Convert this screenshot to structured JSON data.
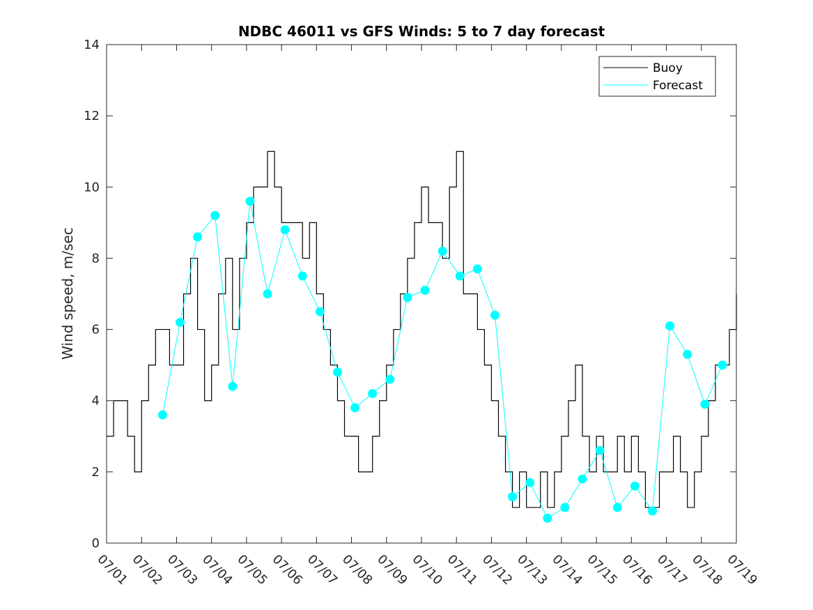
{
  "chart_data": {
    "type": "line",
    "title": "NDBC 46011 vs GFS Winds: 5 to 7 day forecast",
    "xlabel": "",
    "ylabel": "Wind speed, m/sec",
    "xlim": [
      1,
      19
    ],
    "ylim": [
      0,
      14
    ],
    "y_ticks": [
      0,
      2,
      4,
      6,
      8,
      10,
      12,
      14
    ],
    "x_ticks": [
      1,
      2,
      3,
      4,
      5,
      6,
      7,
      8,
      9,
      10,
      11,
      12,
      13,
      14,
      15,
      16,
      17,
      18,
      19
    ],
    "x_tick_labels": [
      "07/01",
      "07/02",
      "07/03",
      "07/04",
      "07/05",
      "07/06",
      "07/07",
      "07/08",
      "07/09",
      "07/10",
      "07/11",
      "07/12",
      "07/13",
      "07/14",
      "07/15",
      "07/16",
      "07/17",
      "07/18",
      "07/19"
    ],
    "grid": false,
    "legend": {
      "position": "top-right",
      "entries": [
        "Buoy",
        "Forecast"
      ]
    },
    "colors": {
      "buoy": "#000000",
      "forecast": "#00ffff"
    },
    "series": [
      {
        "name": "Buoy",
        "x": [
          1.0,
          1.2,
          1.4,
          1.6,
          1.8,
          2.0,
          2.2,
          2.4,
          2.6,
          2.8,
          3.0,
          3.2,
          3.4,
          3.6,
          3.8,
          4.0,
          4.2,
          4.4,
          4.6,
          4.8,
          5.0,
          5.2,
          5.4,
          5.6,
          5.8,
          6.0,
          6.2,
          6.4,
          6.6,
          6.8,
          7.0,
          7.2,
          7.4,
          7.6,
          7.8,
          8.0,
          8.2,
          8.4,
          8.6,
          8.8,
          9.0,
          9.2,
          9.4,
          9.6,
          9.8,
          10.0,
          10.2,
          10.4,
          10.6,
          10.8,
          11.0,
          11.2,
          11.4,
          11.6,
          11.8,
          12.0,
          12.2,
          12.4,
          12.6,
          12.8,
          13.0,
          13.2,
          13.4,
          13.6,
          13.8,
          14.0,
          14.2,
          14.4,
          14.6,
          14.8,
          15.0,
          15.2,
          15.4,
          15.6,
          15.8,
          16.0,
          16.2,
          16.4,
          16.6,
          16.8,
          17.0,
          17.2,
          17.4,
          17.6,
          17.8,
          18.0,
          18.2,
          18.4,
          18.6,
          18.8,
          19.0
        ],
        "y": [
          3,
          4,
          4,
          3,
          2,
          4,
          5,
          6,
          6,
          5,
          5,
          7,
          8,
          6,
          4,
          5,
          7,
          8,
          6,
          8,
          9,
          10,
          10,
          11,
          10,
          9,
          9,
          9,
          8,
          9,
          7,
          6,
          5,
          4,
          3,
          3,
          2,
          2,
          3,
          4,
          5,
          6,
          7,
          8,
          9,
          10,
          9,
          9,
          8,
          10,
          11,
          7,
          7,
          6,
          5,
          4,
          3,
          2,
          1,
          2,
          1,
          1,
          2,
          1,
          2,
          3,
          4,
          5,
          3,
          2,
          3,
          2,
          2,
          3,
          2,
          3,
          2,
          1,
          1,
          2,
          2,
          3,
          2,
          1,
          2,
          3,
          4,
          5,
          5,
          6,
          7
        ]
      },
      {
        "name": "Forecast",
        "x": [
          2.6,
          3.1,
          3.6,
          4.1,
          4.6,
          5.1,
          5.6,
          6.1,
          6.6,
          7.1,
          7.6,
          8.1,
          8.6,
          9.1,
          9.6,
          10.1,
          10.6,
          11.1,
          11.6,
          12.1,
          12.6,
          13.1,
          13.6,
          14.1,
          14.6,
          15.1,
          15.6,
          16.1,
          16.6,
          17.1,
          17.6,
          18.1,
          18.6
        ],
        "y": [
          3.6,
          6.2,
          8.6,
          9.2,
          4.4,
          9.6,
          7.0,
          8.8,
          7.5,
          6.5,
          4.8,
          3.8,
          4.2,
          4.6,
          6.9,
          7.1,
          8.2,
          7.5,
          7.7,
          6.4,
          1.3,
          1.7,
          0.7,
          1.0,
          1.8,
          2.6,
          1.0,
          1.6,
          0.9,
          6.1,
          5.3,
          3.9,
          5.0
        ]
      }
    ]
  }
}
